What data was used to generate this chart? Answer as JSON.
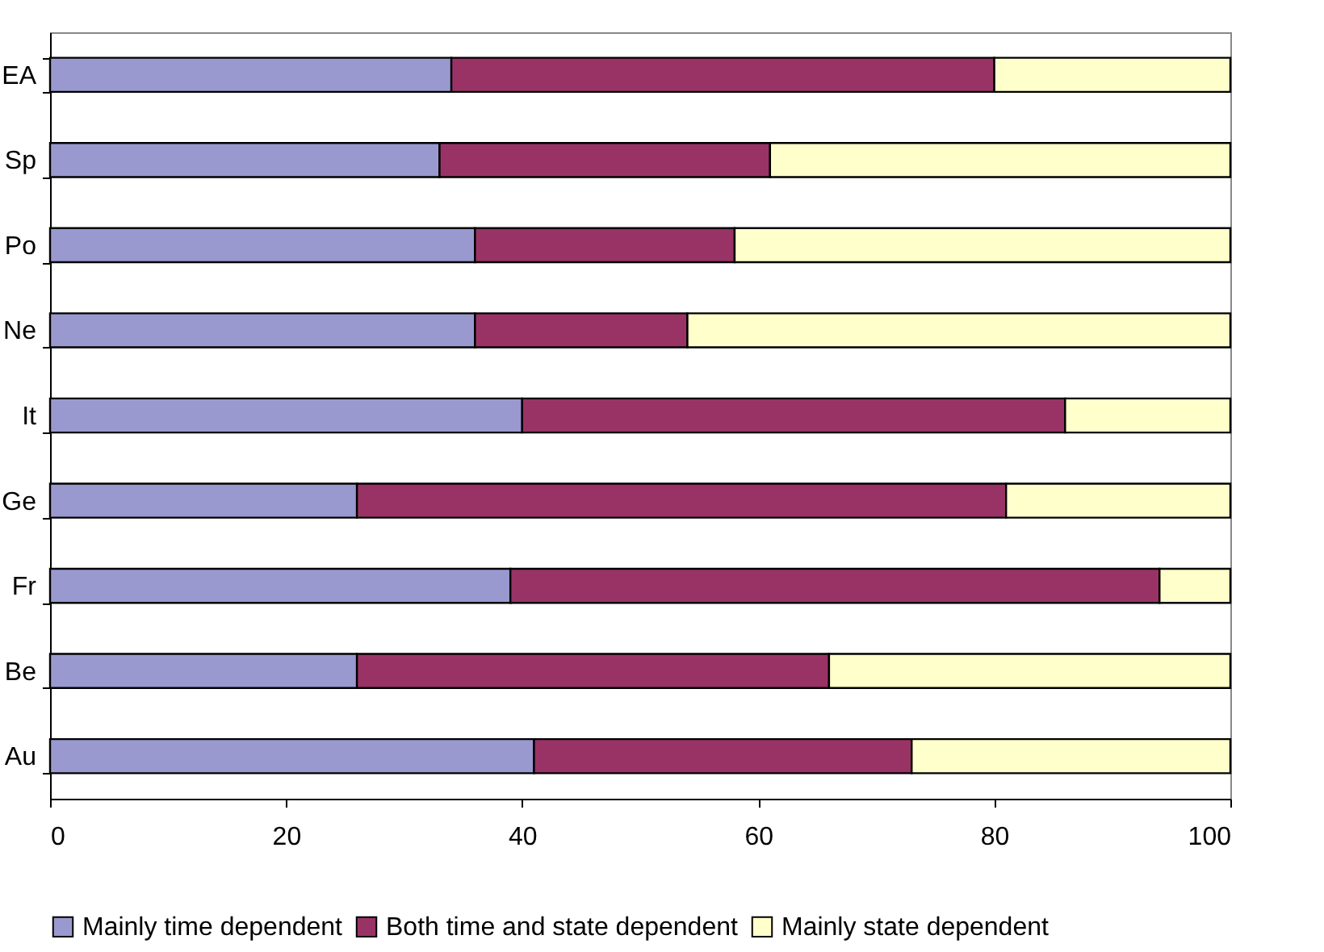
{
  "chart_data": {
    "type": "bar",
    "orientation": "horizontal",
    "stacked": true,
    "categories": [
      "EA",
      "Sp",
      "Po",
      "Ne",
      "It",
      "Ge",
      "Fr",
      "Be",
      "Au"
    ],
    "series": [
      {
        "name": "Mainly time dependent",
        "color": "#9999d0",
        "values": [
          34,
          33,
          36,
          36,
          40,
          26,
          39,
          26,
          41
        ]
      },
      {
        "name": "Both time and state dependent",
        "color": "#993366",
        "values": [
          46,
          28,
          22,
          18,
          46,
          55,
          55,
          40,
          32
        ]
      },
      {
        "name": "Mainly state dependent",
        "color": "#ffffcc",
        "values": [
          20,
          39,
          42,
          46,
          14,
          19,
          6,
          34,
          27
        ]
      }
    ],
    "xlim": [
      0,
      100
    ],
    "xticks": [
      0,
      20,
      40,
      60,
      80,
      100
    ],
    "grid": false,
    "legend": "bottom"
  }
}
